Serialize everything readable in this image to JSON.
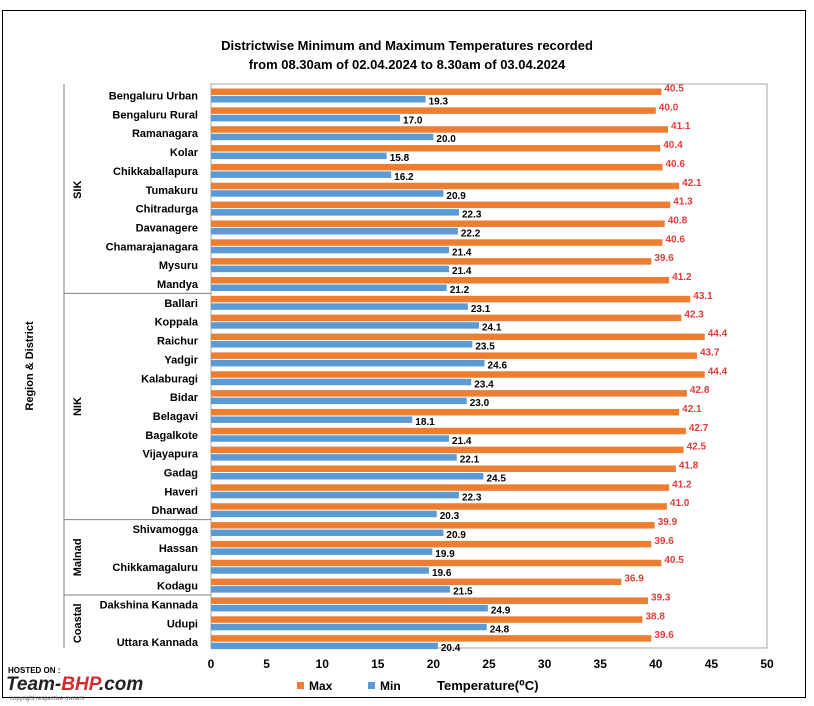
{
  "chart_data": {
    "type": "bar",
    "orientation": "horizontal",
    "title_line1": "Districtwise Minimum and Maximum Temperatures recorded",
    "title_line2": "from 08.30am of 02.04.2024 to 8.30am of 03.04.2024",
    "xlabel": "Temperature(⁰C)",
    "ylabel": "Region & District",
    "xlim": [
      0,
      50
    ],
    "xticks": [
      0,
      5,
      10,
      15,
      20,
      25,
      30,
      35,
      40,
      45,
      50
    ],
    "legend_position": "bottom",
    "grid": false,
    "categories": [
      "Bengaluru Urban",
      "Bengaluru Rural",
      "Ramanagara",
      "Kolar",
      "Chikkaballapura",
      "Tumakuru",
      "Chitradurga",
      "Davanagere",
      "Chamarajanagara",
      "Mysuru",
      "Mandya",
      "Ballari",
      "Koppala",
      "Raichur",
      "Yadgir",
      "Kalaburagi",
      "Bidar",
      "Belagavi",
      "Bagalkote",
      "Vijayapura",
      "Gadag",
      "Haveri",
      "Dharwad",
      "Shivamogga",
      "Hassan",
      "Chikkamagaluru",
      "Kodagu",
      "Dakshina Kannada",
      "Udupi",
      "Uttara Kannada"
    ],
    "regions": [
      {
        "name": "SIK",
        "start": 0,
        "count": 11
      },
      {
        "name": "NIK",
        "start": 11,
        "count": 12
      },
      {
        "name": "Malnad",
        "start": 23,
        "count": 4
      },
      {
        "name": "Coastal",
        "start": 27,
        "count": 3
      }
    ],
    "series": [
      {
        "name": "Max",
        "color": "#ed7d31",
        "label_color": "#e23b3b",
        "values": [
          40.5,
          40.0,
          41.1,
          40.4,
          40.6,
          42.1,
          41.3,
          40.8,
          40.6,
          39.6,
          41.2,
          43.1,
          42.3,
          44.4,
          43.7,
          44.4,
          42.8,
          42.1,
          42.7,
          42.5,
          41.8,
          41.2,
          41.0,
          39.9,
          39.6,
          40.5,
          36.9,
          39.3,
          38.8,
          39.6
        ],
        "labels": [
          "40.5",
          "40.0",
          "41.1",
          "40.4",
          "40.6",
          "42.1",
          "41.3",
          "40.8",
          "40.6",
          "39.6",
          "41.2",
          "43.1",
          "42.3",
          "44.4",
          "43.7",
          "44.4",
          "42.8",
          "42.1",
          "42.7",
          "42.5",
          "41.8",
          "41.2",
          "41.0",
          "39.9",
          "39.6",
          "40.5",
          "36.9",
          "39.3",
          "38.8",
          "39.6"
        ],
        "label_colors": [
          "#e23b3b",
          "#e23b3b",
          "#e23b3b",
          "#e23b3b",
          "#e23b3b",
          "#e23b3b",
          "#e23b3b",
          "#e23b3b",
          "#e23b3b",
          "#000000",
          "#e23b3b",
          "#e23b3b",
          "#e23b3b",
          "#e23b3b",
          "#e23b3b",
          "#e23b3b",
          "#e23b3b",
          "#e23b3b",
          "#e23b3b",
          "#e23b3b",
          "#e23b3b",
          "#e23b3b",
          "#e23b3b",
          "#000000",
          "#000000",
          "#e23b3b",
          "#000000",
          "#000000",
          "#000000",
          "#000000"
        ]
      },
      {
        "name": "Min",
        "color": "#5b9bd5",
        "label_color": "#000000",
        "values": [
          19.3,
          17.0,
          20.0,
          15.8,
          16.2,
          20.9,
          22.3,
          22.2,
          21.4,
          21.4,
          21.2,
          23.1,
          24.1,
          23.5,
          24.6,
          23.4,
          23.0,
          18.1,
          21.4,
          22.1,
          24.5,
          22.3,
          20.3,
          20.9,
          19.9,
          19.6,
          21.5,
          24.9,
          24.8,
          20.4
        ],
        "labels": [
          "19.3",
          "17.0",
          "20.0",
          "15.8",
          "16.2",
          "20.9",
          "22.3",
          "22.2",
          "21.4",
          "21.4",
          "21.2",
          "23.1",
          "24.1",
          "23.5",
          "24.6",
          "23.4",
          "23.0",
          "18.1",
          "21.4",
          "22.1",
          "24.5",
          "22.3",
          "20.3",
          "20.9",
          "19.9",
          "19.6",
          "21.5",
          "24.9",
          "24.8",
          "20.4"
        ]
      }
    ]
  },
  "watermark": {
    "hosted_on": "HOSTED ON :",
    "logo_part1": "Team-",
    "logo_part2": "BHP",
    "logo_part3": ".com",
    "copyright": "copyright respective owners"
  }
}
